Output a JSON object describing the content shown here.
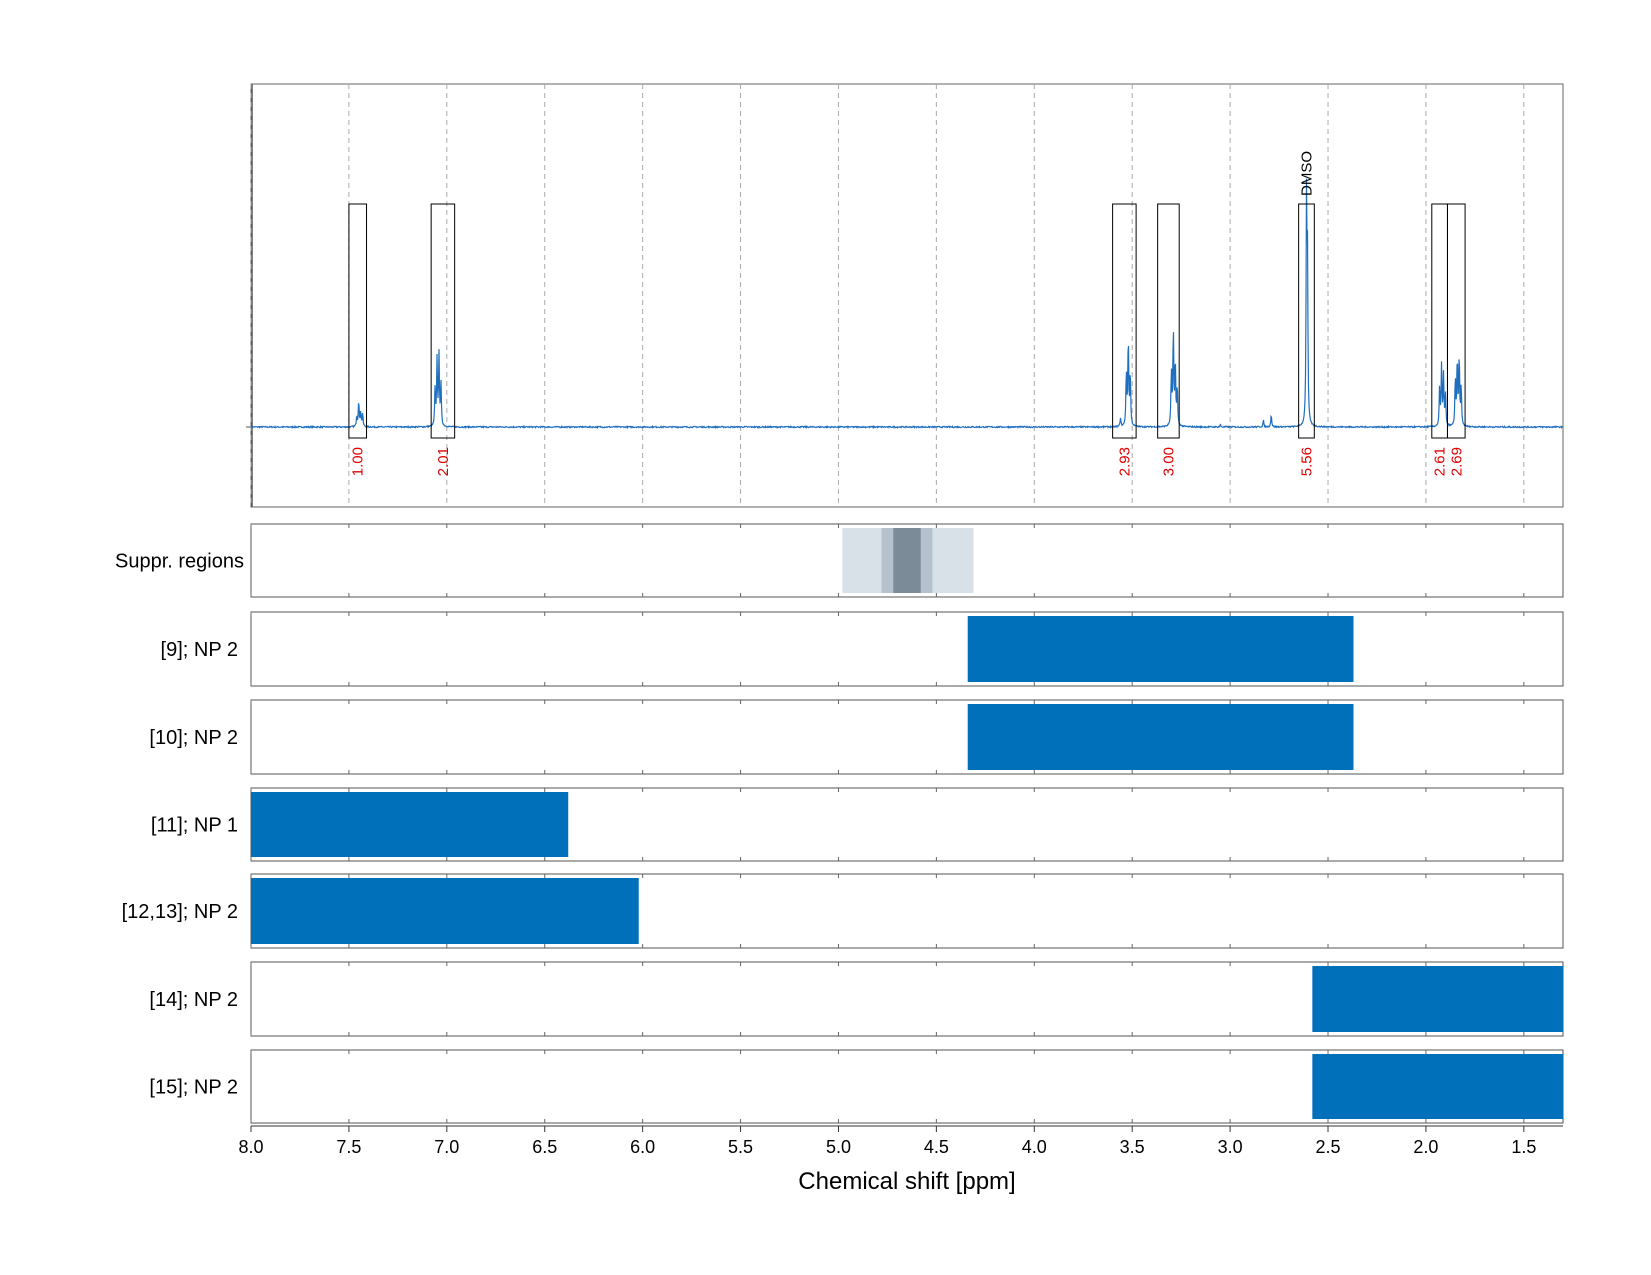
{
  "chart_data": {
    "type": "line",
    "xlabel": "Chemical shift [ppm]",
    "xlim": [
      8.0,
      1.3
    ],
    "x_ticks": [
      "8.0",
      "7.5",
      "7.0",
      "6.5",
      "6.0",
      "5.5",
      "5.0",
      "4.5",
      "4.0",
      "3.5",
      "3.0",
      "2.5",
      "2.0",
      "1.5"
    ],
    "x_tick_values": [
      8.0,
      7.5,
      7.0,
      6.5,
      6.0,
      5.5,
      5.0,
      4.5,
      4.0,
      3.5,
      3.0,
      2.5,
      2.0,
      1.5
    ],
    "grid": true,
    "line_color": "#1f6fbf",
    "spectrum": {
      "peaks": [
        {
          "x": 7.46,
          "h": 0.05
        },
        {
          "x": 7.45,
          "h": 0.12
        },
        {
          "x": 7.44,
          "h": 0.07
        },
        {
          "x": 7.43,
          "h": 0.06
        },
        {
          "x": 7.06,
          "h": 0.17
        },
        {
          "x": 7.05,
          "h": 0.3
        },
        {
          "x": 7.04,
          "h": 0.32
        },
        {
          "x": 7.03,
          "h": 0.19
        },
        {
          "x": 3.56,
          "h": 0.04
        },
        {
          "x": 3.53,
          "h": 0.25
        },
        {
          "x": 3.52,
          "h": 0.41
        },
        {
          "x": 3.51,
          "h": 0.25
        },
        {
          "x": 3.3,
          "h": 0.25
        },
        {
          "x": 3.29,
          "h": 0.45
        },
        {
          "x": 3.28,
          "h": 0.3
        },
        {
          "x": 3.27,
          "h": 0.18
        },
        {
          "x": 3.05,
          "h": 0.01
        },
        {
          "x": 2.83,
          "h": 0.03
        },
        {
          "x": 2.79,
          "h": 0.06
        },
        {
          "x": 2.61,
          "h": 0.98
        },
        {
          "x": 2.605,
          "h": 0.72
        },
        {
          "x": 1.93,
          "h": 0.18
        },
        {
          "x": 1.92,
          "h": 0.28
        },
        {
          "x": 1.91,
          "h": 0.23
        },
        {
          "x": 1.9,
          "h": 0.14
        },
        {
          "x": 1.85,
          "h": 0.22
        },
        {
          "x": 1.84,
          "h": 0.31
        },
        {
          "x": 1.83,
          "h": 0.32
        },
        {
          "x": 1.82,
          "h": 0.18
        }
      ]
    },
    "integration_regions": [
      {
        "x1": 7.5,
        "x2": 7.41,
        "label": "1.00"
      },
      {
        "x1": 7.08,
        "x2": 6.96,
        "label": "2.01"
      },
      {
        "x1": 3.6,
        "x2": 3.48,
        "label": "2.93"
      },
      {
        "x1": 3.37,
        "x2": 3.26,
        "label": "3.00"
      },
      {
        "x1": 2.65,
        "x2": 2.57,
        "label": "5.56",
        "annotation": "DMSO"
      },
      {
        "x1": 1.97,
        "x2": 1.89,
        "label": "2.61"
      },
      {
        "x1": 1.89,
        "x2": 1.8,
        "label": "2.69"
      }
    ],
    "suppression": {
      "label": "Suppr. regions",
      "bands": [
        {
          "x1": 4.98,
          "x2": 4.31,
          "color": "#d9e1e8"
        },
        {
          "x1": 4.78,
          "x2": 4.52,
          "color": "#b5c1cc"
        },
        {
          "x1": 4.72,
          "x2": 4.58,
          "color": "#7b8b97"
        }
      ]
    },
    "series": [
      {
        "name": "[9]; NP 2",
        "x1": 4.34,
        "x2": 2.37
      },
      {
        "name": "[10]; NP 2",
        "x1": 4.34,
        "x2": 2.37
      },
      {
        "name": "[11]; NP 1",
        "x1": 8.0,
        "x2": 6.38
      },
      {
        "name": "[12,13]; NP 2",
        "x1": 8.0,
        "x2": 6.02
      },
      {
        "name": "[14]; NP 2",
        "x1": 2.58,
        "x2": 1.3
      },
      {
        "name": "[15]; NP 2",
        "x1": 2.58,
        "x2": 1.3
      }
    ],
    "bar_color": "#0070bb"
  }
}
